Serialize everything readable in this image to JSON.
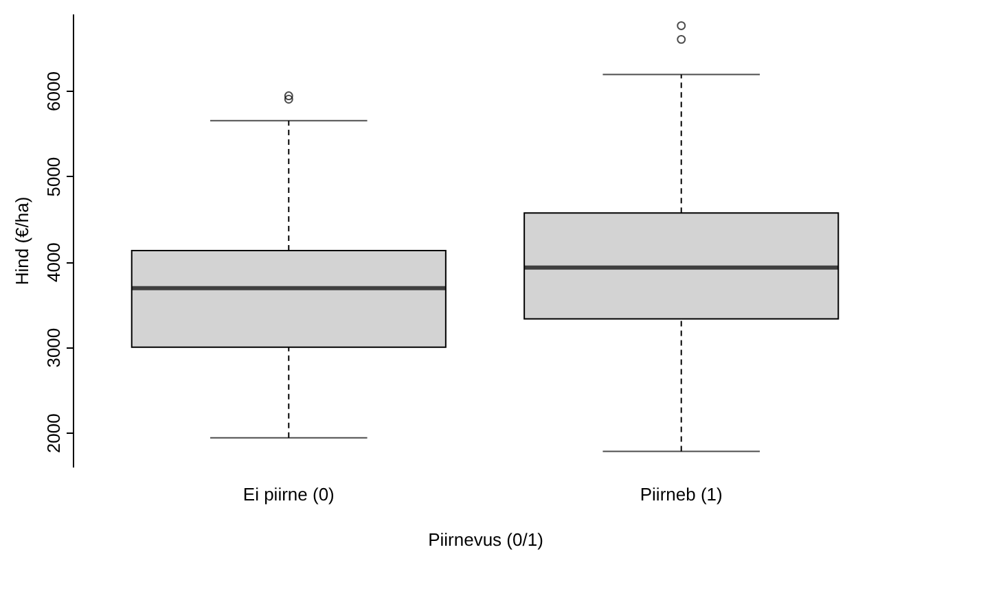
{
  "chart_data": {
    "type": "box",
    "xlabel": "Piirnevus (0/1)",
    "ylabel": "Hind (€/ha)",
    "categories": [
      "Ei piirne (0)",
      "Piirneb (1)"
    ],
    "color": "#d3d3d3",
    "boxes": [
      {
        "low": 1940,
        "q1": 3000,
        "median": 3690,
        "q3": 4130,
        "high": 5650,
        "outliers": [
          5900,
          5940
        ]
      },
      {
        "low": 1780,
        "q1": 3330,
        "median": 3930,
        "q3": 4570,
        "high": 6190,
        "outliers": [
          6600,
          6760
        ]
      }
    ],
    "ylim": [
      1600,
      6900
    ],
    "yticks": [
      2000,
      3000,
      4000,
      5000,
      6000
    ],
    "grid": false
  }
}
